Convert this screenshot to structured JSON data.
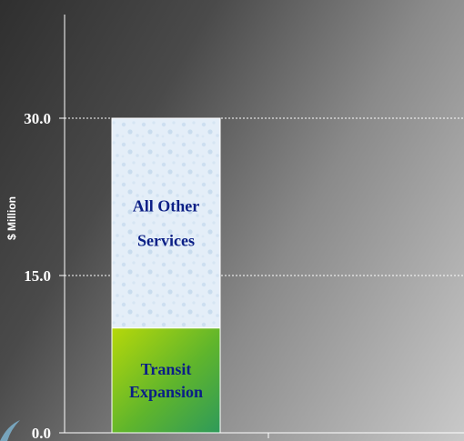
{
  "chart_data": {
    "type": "bar",
    "stacked": true,
    "ylabel": "$ Million",
    "ylim": [
      0,
      30
    ],
    "yticks": [
      "0.0",
      "15.0",
      "30.0"
    ],
    "grid": true,
    "categories": [
      ""
    ],
    "series": [
      {
        "name": "Transit Expansion",
        "label_lines": [
          "Transit",
          "Expansion"
        ],
        "values": [
          10.0
        ]
      },
      {
        "name": "All Other Services",
        "label_lines": [
          "All Other",
          "Services"
        ],
        "values": [
          20.0
        ]
      }
    ]
  }
}
